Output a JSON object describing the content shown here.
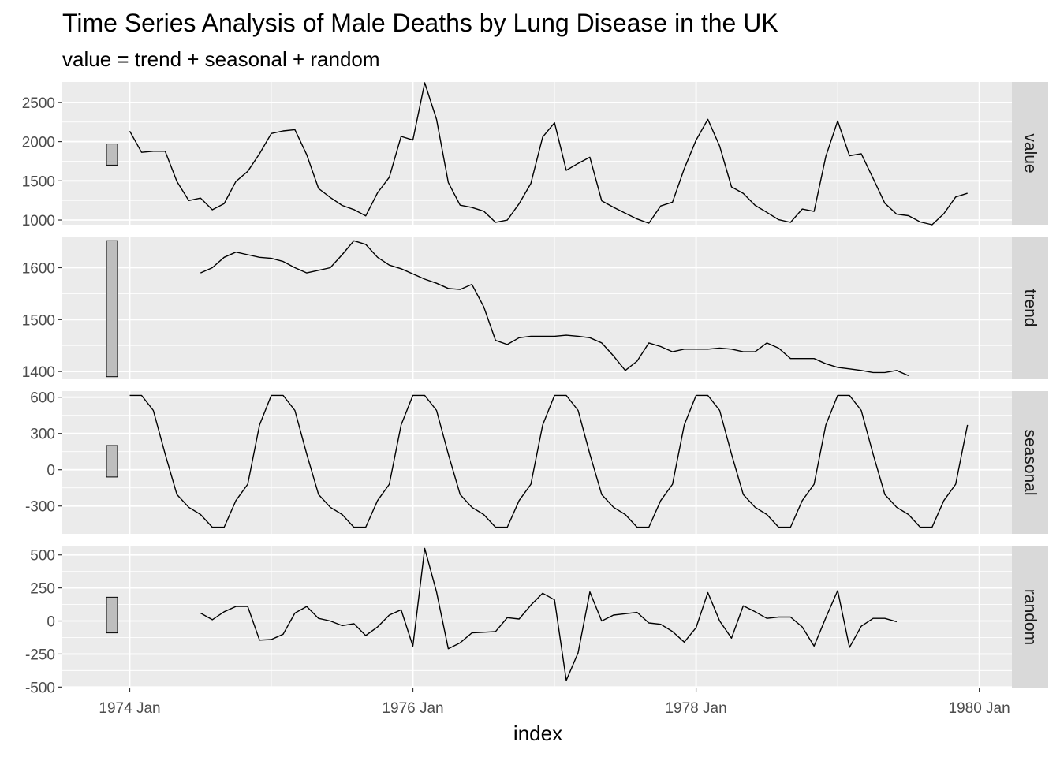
{
  "chart_data": {
    "type": "line",
    "title": "Time Series Analysis of Male Deaths by Lung Disease in the UK",
    "subtitle": "value = trend + seasonal + random",
    "xlabel": "index",
    "x_start": "1974 Jan",
    "x_frequency": "monthly",
    "x_ticks": [
      "1974 Jan",
      "1976 Jan",
      "1978 Jan",
      "1980 Jan"
    ],
    "grid": true,
    "facets": [
      {
        "name": "value",
        "ylim": [
          940,
          2760
        ],
        "y_ticks": [
          1000,
          1500,
          2000,
          2500
        ],
        "range_bar": [
          1700,
          1970
        ],
        "values": [
          2134,
          1863,
          1877,
          1877,
          1492,
          1249,
          1280,
          1131,
          1209,
          1492,
          1621,
          1846,
          2103,
          2137,
          2153,
          1833,
          1403,
          1288,
          1186,
          1133,
          1053,
          1347,
          1545,
          2066,
          2020,
          2750,
          2283,
          1479,
          1189,
          1160,
          1113,
          970,
          999,
          1208,
          1467,
          2059,
          2240,
          1634,
          1722,
          1801,
          1246,
          1162,
          1087,
          1013,
          959,
          1179,
          1229,
          1655,
          2019,
          2284,
          1942,
          1423,
          1340,
          1187,
          1098,
          1004,
          970,
          1140,
          1110,
          1812,
          2263,
          1820,
          1846,
          1531,
          1215,
          1075,
          1056,
          975,
          940,
          1081,
          1294,
          1341
        ]
      },
      {
        "name": "trend",
        "ylim": [
          1385,
          1660
        ],
        "y_ticks": [
          1400,
          1500,
          1600
        ],
        "range_bar": [
          1390,
          1652
        ],
        "values": [
          null,
          null,
          null,
          null,
          null,
          null,
          1590,
          1600,
          1620,
          1630,
          1625,
          1620,
          1618,
          1612,
          1600,
          1590,
          1595,
          1600,
          1625,
          1652,
          1645,
          1620,
          1605,
          1598,
          1588,
          1578,
          1570,
          1560,
          1558,
          1568,
          1525,
          1460,
          1452,
          1465,
          1468,
          1468,
          1468,
          1470,
          1468,
          1465,
          1455,
          1430,
          1402,
          1420,
          1455,
          1448,
          1438,
          1443,
          1443,
          1443,
          1445,
          1443,
          1438,
          1438,
          1455,
          1445,
          1425,
          1425,
          1425,
          1415,
          1408,
          1405,
          1402,
          1398,
          1398,
          1402,
          1392,
          null,
          null,
          null,
          null,
          null
        ]
      },
      {
        "name": "seasonal",
        "ylim": [
          -530,
          650
        ],
        "y_ticks": [
          -300,
          0,
          300,
          600
        ],
        "range_bar": [
          -60,
          200
        ],
        "values": [
          615,
          615,
          490,
          130,
          -205,
          -310,
          -370,
          -475,
          -475,
          -255,
          -120,
          370,
          615,
          615,
          490,
          130,
          -205,
          -310,
          -370,
          -475,
          -475,
          -255,
          -120,
          370,
          615,
          615,
          490,
          130,
          -205,
          -310,
          -370,
          -475,
          -475,
          -255,
          -120,
          370,
          615,
          615,
          490,
          130,
          -205,
          -310,
          -370,
          -475,
          -475,
          -255,
          -120,
          370,
          615,
          615,
          490,
          130,
          -205,
          -310,
          -370,
          -475,
          -475,
          -255,
          -120,
          370,
          615,
          615,
          490,
          130,
          -205,
          -310,
          -370,
          -475,
          -475,
          -255,
          -120,
          370
        ]
      },
      {
        "name": "random",
        "ylim": [
          -510,
          570
        ],
        "y_ticks": [
          -500,
          -250,
          0,
          250,
          500
        ],
        "range_bar": [
          -90,
          180
        ],
        "values": [
          null,
          null,
          null,
          null,
          null,
          null,
          60,
          10,
          70,
          110,
          110,
          -145,
          -140,
          -100,
          60,
          110,
          20,
          0,
          -35,
          -20,
          -110,
          -45,
          45,
          85,
          -190,
          550,
          220,
          -210,
          -165,
          -90,
          -85,
          -80,
          25,
          15,
          120,
          210,
          160,
          -450,
          -240,
          220,
          0,
          45,
          55,
          65,
          -15,
          -25,
          -80,
          -160,
          -50,
          215,
          0,
          -130,
          115,
          70,
          20,
          30,
          30,
          -45,
          -190,
          25,
          230,
          -200,
          -40,
          20,
          20,
          -5,
          null,
          null,
          null,
          null,
          null,
          null
        ]
      }
    ]
  }
}
